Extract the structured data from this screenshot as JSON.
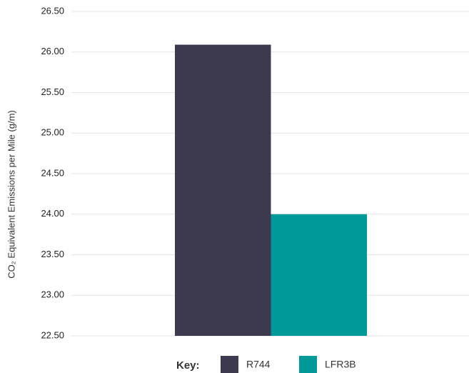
{
  "chart_data": {
    "type": "bar",
    "y_label": "CO₂ Equivalent Emissions per Mile (g/m)",
    "legend_title": "Key:",
    "series": [
      {
        "name": "R744",
        "color": "#3d3a4f",
        "values": [
          26.09
        ]
      },
      {
        "name": "LFR3B",
        "color": "#00999a",
        "values": [
          24.0
        ]
      }
    ],
    "ylim": [
      22.5,
      26.5
    ],
    "yticks": [
      {
        "value": 22.5,
        "label": "22.50"
      },
      {
        "value": 23,
        "label": "23.00"
      },
      {
        "value": 23.5,
        "label": "23.50"
      },
      {
        "value": 24,
        "label": "24.00"
      },
      {
        "value": 24.5,
        "label": "24.50"
      },
      {
        "value": 25,
        "label": "25.00"
      },
      {
        "value": 25.5,
        "label": "25.50"
      },
      {
        "value": 26,
        "label": "26.00"
      },
      {
        "value": 26.5,
        "label": "26.50"
      }
    ],
    "grid": true
  }
}
